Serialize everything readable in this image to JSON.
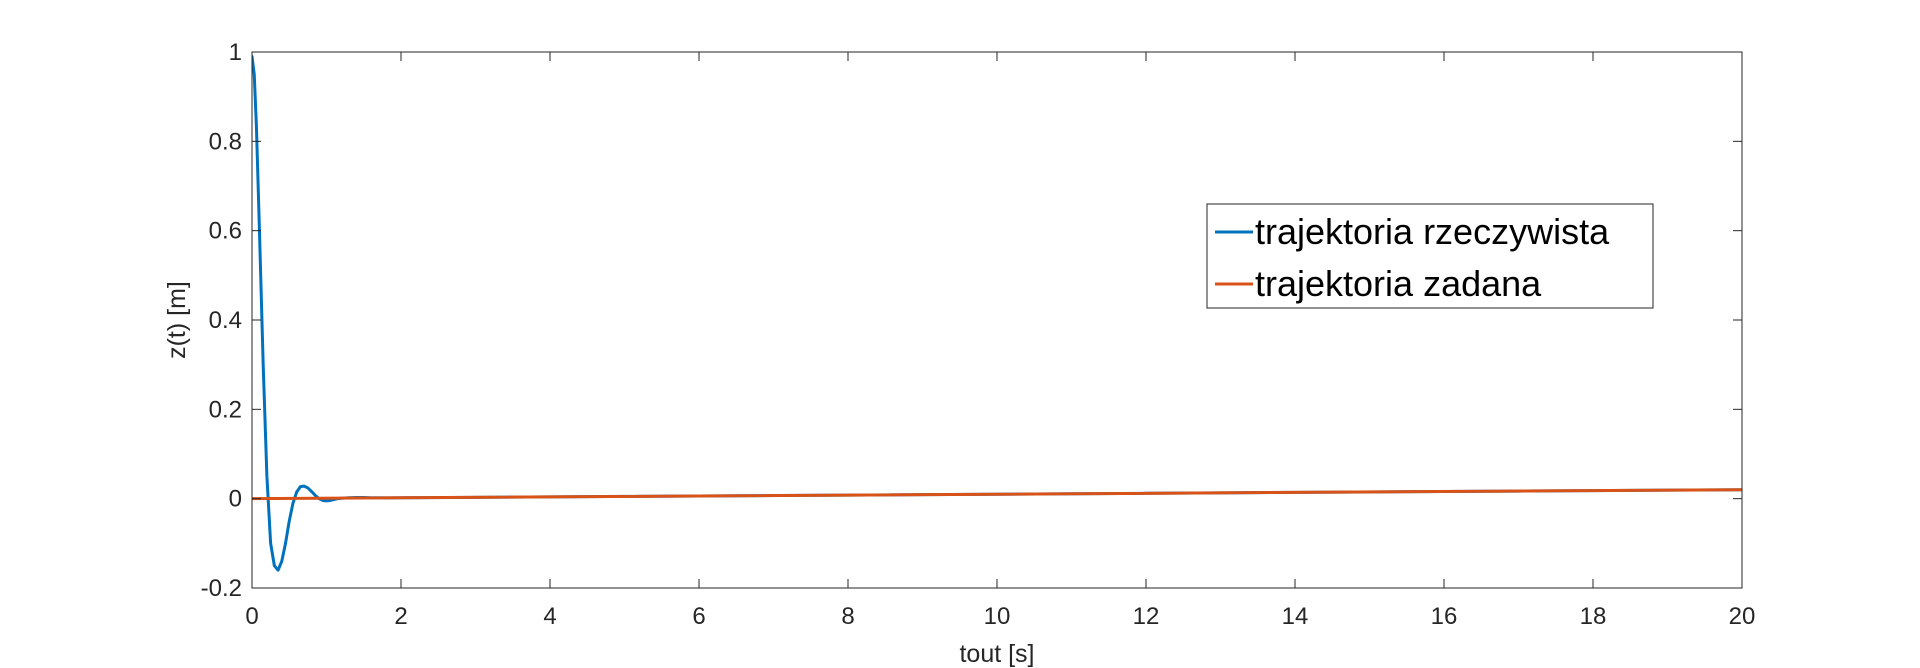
{
  "chart_data": {
    "type": "line",
    "title": "",
    "xlabel": "tout   [s]",
    "ylabel": "z(t)   [m]",
    "xlim": [
      0,
      20
    ],
    "ylim": [
      -0.2,
      1
    ],
    "xticks": [
      "0",
      "2",
      "4",
      "6",
      "8",
      "10",
      "12",
      "14",
      "16",
      "18",
      "20"
    ],
    "yticks": [
      "-0.2",
      "0",
      "0.2",
      "0.4",
      "0.6",
      "0.8",
      "1"
    ],
    "grid": true,
    "legend_position": "upper-right",
    "series": [
      {
        "name": "trajektoria rzeczywista",
        "color": "#0072BD",
        "x": [
          0,
          0.03,
          0.06,
          0.1,
          0.15,
          0.2,
          0.25,
          0.3,
          0.35,
          0.4,
          0.45,
          0.5,
          0.55,
          0.6,
          0.65,
          0.7,
          0.75,
          0.8,
          0.85,
          0.9,
          0.95,
          1.0,
          1.05,
          1.1,
          1.15,
          1.2,
          1.3,
          1.4,
          1.5,
          1.6,
          1.8,
          2.0,
          3,
          4,
          5,
          6,
          7,
          8,
          9,
          10,
          11,
          12,
          13,
          14,
          15,
          16,
          17,
          18,
          19,
          20
        ],
        "y": [
          0.99,
          0.95,
          0.83,
          0.6,
          0.3,
          0.05,
          -0.1,
          -0.15,
          -0.16,
          -0.14,
          -0.1,
          -0.05,
          -0.01,
          0.015,
          0.027,
          0.028,
          0.024,
          0.016,
          0.007,
          0.0,
          -0.004,
          -0.005,
          -0.004,
          -0.002,
          0.0,
          0.001,
          0.002,
          0.0025,
          0.0025,
          0.002,
          0.0019,
          0.0021,
          0.003,
          0.004,
          0.005,
          0.006,
          0.007,
          0.008,
          0.009,
          0.01,
          0.011,
          0.012,
          0.013,
          0.014,
          0.015,
          0.016,
          0.017,
          0.018,
          0.019,
          0.02
        ]
      },
      {
        "name": "trajektoria zadana",
        "color": "#D95319",
        "x": [
          0,
          20
        ],
        "y": [
          0,
          0.02
        ]
      }
    ]
  }
}
